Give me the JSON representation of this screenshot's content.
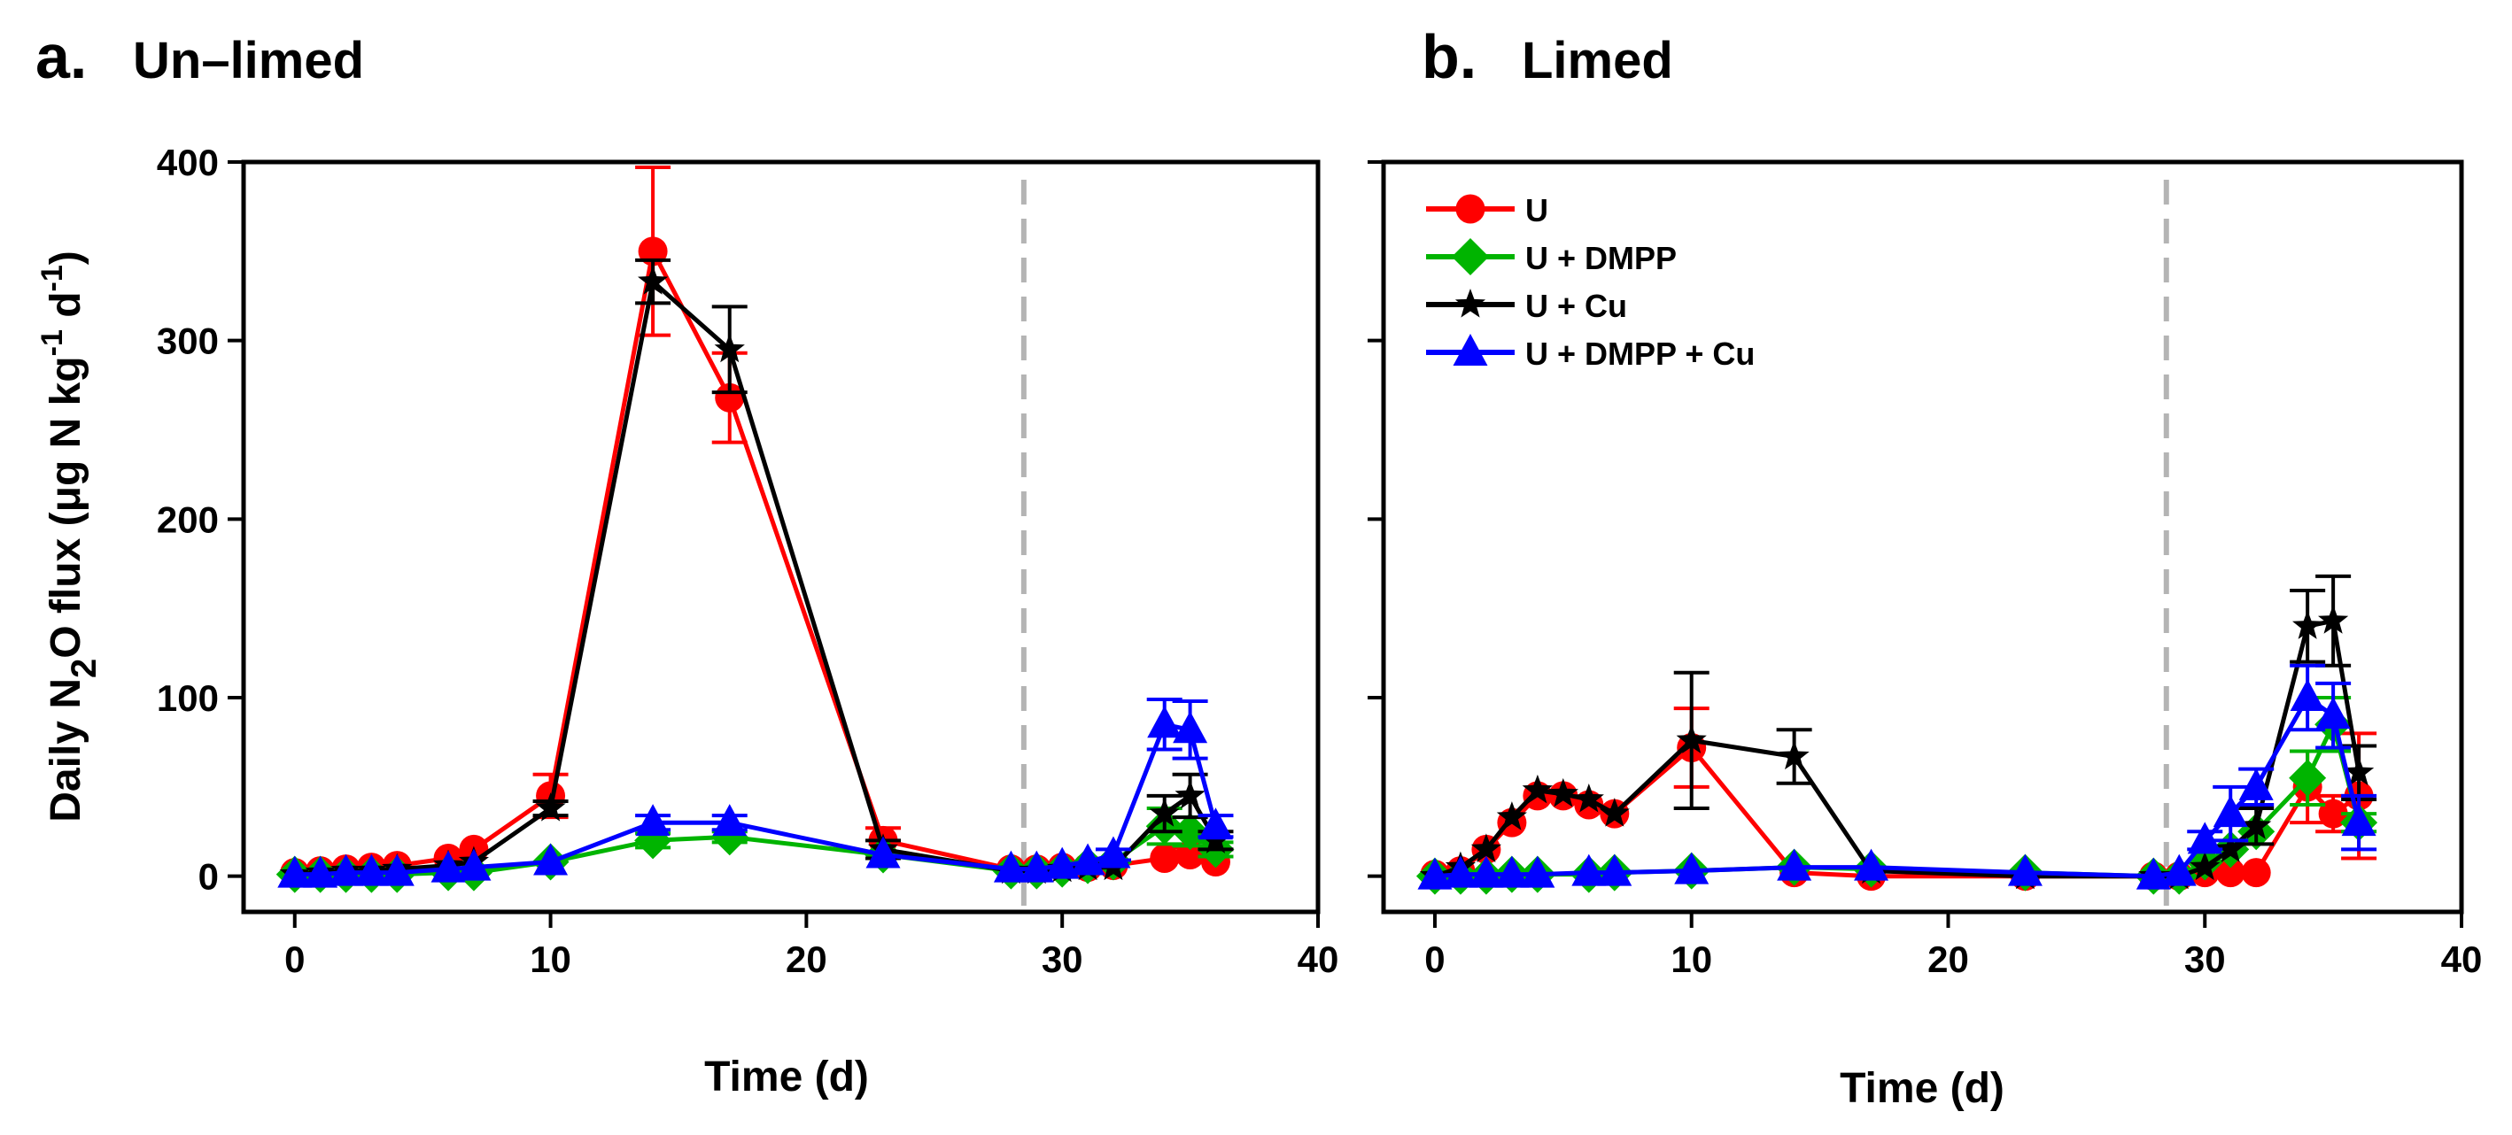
{
  "legend": [
    {
      "label": "U",
      "color": "#ff0000",
      "marker": "circle"
    },
    {
      "label": "U + DMPP",
      "color": "#00b400",
      "marker": "diamond"
    },
    {
      "label": "U + Cu",
      "color": "#000000",
      "marker": "star"
    },
    {
      "label": "U + DMPP + Cu",
      "color": "#0000ff",
      "marker": "triangle"
    }
  ],
  "chart_data": [
    {
      "type": "line",
      "panel_letter": "a.",
      "title": "Un–limed",
      "xlabel": "Time (d)",
      "ylabel_parts": [
        "Daily N",
        "2",
        "O flux (μg N kg",
        "-1",
        " d",
        "-1",
        ")"
      ],
      "xlim": [
        -2,
        40
      ],
      "ylim": [
        -20,
        400
      ],
      "xticks": [
        0,
        10,
        20,
        30,
        40
      ],
      "yticks": [
        0,
        100,
        200,
        300,
        400
      ],
      "vline_x": 28.5,
      "series": [
        {
          "name": "U",
          "color": "#ff0000",
          "marker": "circle",
          "x": [
            0,
            1,
            2,
            3,
            4,
            6,
            7,
            10,
            14,
            17,
            23,
            28,
            29,
            30,
            31,
            32,
            34,
            35,
            36
          ],
          "y": [
            2,
            3,
            4,
            5,
            6,
            10,
            15,
            45,
            350,
            268,
            20,
            4,
            4,
            5,
            5,
            6,
            10,
            12,
            8
          ],
          "err": [
            0,
            0,
            0,
            0,
            0,
            0,
            0,
            12,
            47,
            25,
            7,
            0,
            0,
            0,
            0,
            0,
            0,
            4,
            0
          ]
        },
        {
          "name": "U + DMPP",
          "color": "#00b400",
          "marker": "diamond",
          "x": [
            0,
            1,
            2,
            3,
            4,
            6,
            7,
            10,
            14,
            17,
            23,
            28,
            29,
            30,
            31,
            32,
            34,
            35,
            36
          ],
          "y": [
            1,
            1,
            1,
            1,
            1,
            2,
            2,
            8,
            20,
            22,
            12,
            3,
            3,
            4,
            6,
            8,
            28,
            25,
            15
          ],
          "err": [
            0,
            0,
            0,
            0,
            0,
            0,
            0,
            0,
            4,
            3,
            0,
            0,
            0,
            0,
            0,
            0,
            10,
            8,
            4
          ]
        },
        {
          "name": "U + Cu",
          "color": "#000000",
          "marker": "star",
          "x": [
            0,
            1,
            2,
            3,
            4,
            6,
            7,
            10,
            14,
            17,
            23,
            28,
            29,
            30,
            31,
            32,
            34,
            35,
            36
          ],
          "y": [
            1,
            2,
            3,
            3,
            4,
            6,
            8,
            38,
            333,
            295,
            15,
            3,
            3,
            4,
            5,
            5,
            35,
            45,
            20
          ],
          "err": [
            0,
            0,
            0,
            0,
            0,
            0,
            0,
            4,
            12,
            24,
            5,
            0,
            0,
            0,
            0,
            0,
            10,
            12,
            5
          ]
        },
        {
          "name": "U + DMPP + Cu",
          "color": "#0000ff",
          "marker": "triangle",
          "x": [
            0,
            1,
            2,
            3,
            4,
            6,
            7,
            10,
            14,
            17,
            23,
            28,
            29,
            30,
            31,
            32,
            34,
            35,
            36
          ],
          "y": [
            1,
            1,
            2,
            2,
            2,
            4,
            5,
            8,
            30,
            30,
            12,
            4,
            4,
            6,
            8,
            12,
            85,
            82,
            28
          ],
          "err": [
            0,
            0,
            0,
            0,
            0,
            0,
            0,
            0,
            4,
            4,
            0,
            0,
            0,
            0,
            0,
            3,
            14,
            16,
            6
          ]
        }
      ]
    },
    {
      "type": "line",
      "panel_letter": "b.",
      "title": "Limed",
      "xlabel": "Time (d)",
      "xlim": [
        -2,
        40
      ],
      "ylim": [
        -20,
        400
      ],
      "xticks": [
        0,
        10,
        20,
        30,
        40
      ],
      "yticks": [
        0,
        100,
        200,
        300,
        400
      ],
      "vline_x": 28.5,
      "series": [
        {
          "name": "U",
          "color": "#ff0000",
          "marker": "circle",
          "x": [
            0,
            1,
            2,
            3,
            4,
            5,
            6,
            7,
            10,
            14,
            17,
            23,
            28,
            29,
            30,
            31,
            32,
            34,
            35,
            36
          ],
          "y": [
            1,
            3,
            15,
            30,
            45,
            45,
            40,
            35,
            72,
            2,
            0,
            0,
            0,
            0,
            2,
            2,
            2,
            50,
            35,
            45
          ],
          "err": [
            0,
            0,
            0,
            0,
            0,
            0,
            0,
            0,
            22,
            0,
            0,
            0,
            0,
            0,
            0,
            0,
            0,
            20,
            10,
            35
          ]
        },
        {
          "name": "U + DMPP",
          "color": "#00b400",
          "marker": "diamond",
          "x": [
            0,
            1,
            2,
            3,
            4,
            6,
            7,
            10,
            14,
            17,
            23,
            28,
            29,
            30,
            31,
            32,
            34,
            35,
            36
          ],
          "y": [
            0,
            0,
            0,
            1,
            1,
            1,
            2,
            3,
            5,
            4,
            2,
            0,
            0,
            8,
            15,
            25,
            55,
            85,
            30
          ],
          "err": [
            0,
            0,
            0,
            0,
            0,
            0,
            0,
            0,
            0,
            0,
            0,
            0,
            0,
            0,
            0,
            0,
            15,
            15,
            5
          ]
        },
        {
          "name": "U + Cu",
          "color": "#000000",
          "marker": "star",
          "x": [
            0,
            1,
            2,
            3,
            4,
            5,
            6,
            7,
            10,
            14,
            17,
            23,
            28,
            29,
            30,
            31,
            32,
            34,
            35,
            36
          ],
          "y": [
            0,
            5,
            15,
            33,
            48,
            46,
            43,
            35,
            76,
            67,
            3,
            0,
            0,
            0,
            5,
            15,
            28,
            140,
            143,
            58
          ],
          "err": [
            0,
            0,
            0,
            0,
            0,
            0,
            0,
            0,
            38,
            15,
            0,
            0,
            0,
            0,
            0,
            0,
            10,
            20,
            25,
            15
          ]
        },
        {
          "name": "U + DMPP + Cu",
          "color": "#0000ff",
          "marker": "triangle",
          "x": [
            0,
            1,
            2,
            3,
            4,
            6,
            7,
            10,
            14,
            17,
            23,
            28,
            29,
            30,
            31,
            32,
            34,
            35,
            36
          ],
          "y": [
            0,
            1,
            1,
            1,
            1,
            2,
            2,
            3,
            5,
            5,
            2,
            0,
            2,
            20,
            35,
            50,
            100,
            90,
            30
          ],
          "err": [
            0,
            0,
            0,
            0,
            0,
            0,
            0,
            0,
            0,
            0,
            0,
            0,
            0,
            5,
            15,
            10,
            18,
            18,
            15
          ]
        }
      ]
    }
  ]
}
